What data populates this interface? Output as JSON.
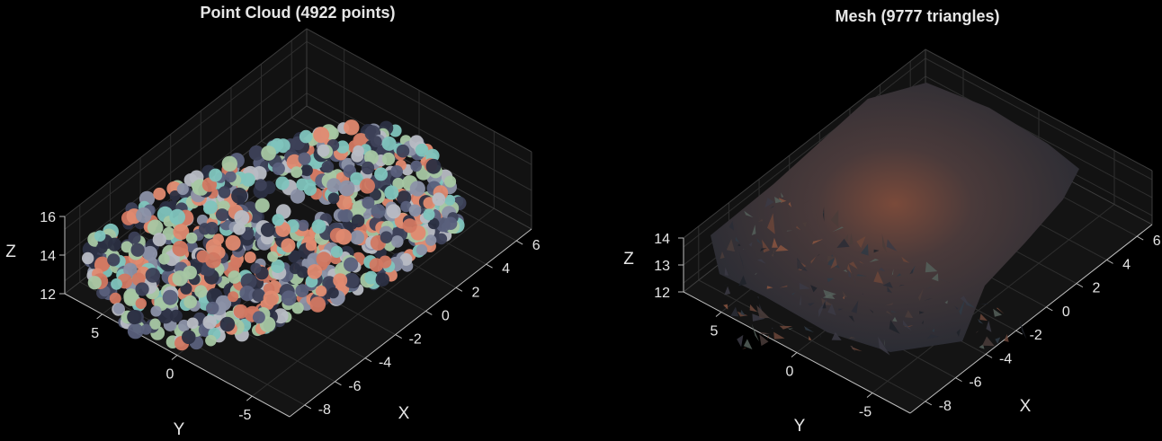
{
  "chart_data": [
    {
      "type": "scatter",
      "subtype": "3d-point-cloud",
      "title": "Point Cloud (4922 points)",
      "xlabel": "X",
      "ylabel": "Y",
      "zlabel": "Z",
      "x_ticks": [
        "-8",
        "-6",
        "-4",
        "-2",
        "0",
        "2",
        "4",
        "6"
      ],
      "y_ticks": [
        "-5",
        "0",
        "5"
      ],
      "z_ticks": [
        "12",
        "14",
        "16"
      ],
      "xlim": [
        -8,
        7
      ],
      "ylim": [
        -6,
        6
      ],
      "zlim": [
        12,
        16
      ],
      "grid": true,
      "background": "#141414",
      "point_colors": [
        "#3d4158",
        "#5a607c",
        "#8c92a8",
        "#d27862",
        "#e08a70",
        "#b8bcc4",
        "#a7c7a3",
        "#7fc4bd",
        "#2b2f42"
      ]
    },
    {
      "type": "surface",
      "subtype": "3d-mesh",
      "title": "Mesh (9777 triangles)",
      "xlabel": "X",
      "ylabel": "Y",
      "zlabel": "Z",
      "x_ticks": [
        "-8",
        "-6",
        "-4",
        "-2",
        "0",
        "2",
        "4",
        "6"
      ],
      "y_ticks": [
        "-5",
        "0",
        "5"
      ],
      "z_ticks": [
        "12",
        "13",
        "14"
      ],
      "xlim": [
        -8,
        7
      ],
      "ylim": [
        -6,
        6
      ],
      "zlim": [
        12,
        14.5
      ],
      "grid": true,
      "background": "#141414",
      "surface_colors": [
        "#2a2d36",
        "#3b3a44",
        "#4a3c3a",
        "#6b4538",
        "#8a5540",
        "#2f3a44",
        "#55605a",
        "#1f2229"
      ]
    }
  ]
}
